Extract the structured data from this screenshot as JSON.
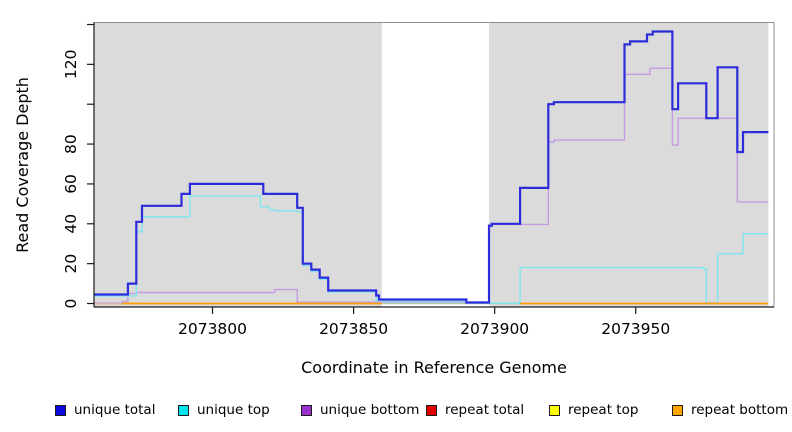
{
  "chart_data": {
    "type": "line",
    "subtype": "step-after-coverage",
    "title": "",
    "xlabel": "Coordinate in Reference Genome",
    "ylabel": "Read Coverage Depth",
    "xlim": [
      2073758,
      2073999
    ],
    "ylim": [
      0,
      140
    ],
    "grid": false,
    "legend_position": "bottom",
    "x_ticks": [
      {
        "value": 2073800,
        "label": "2073800"
      },
      {
        "value": 2073850,
        "label": "2073850"
      },
      {
        "value": 2073900,
        "label": "2073900"
      },
      {
        "value": 2073950,
        "label": "2073950"
      }
    ],
    "y_ticks": [
      {
        "value": 0,
        "label": "0"
      },
      {
        "value": 20,
        "label": "20"
      },
      {
        "value": 40,
        "label": "40"
      },
      {
        "value": 60,
        "label": "60"
      },
      {
        "value": 80,
        "label": "80"
      },
      {
        "value": 100,
        "label": ""
      },
      {
        "value": 120,
        "label": "120"
      },
      {
        "value": 140,
        "label": ""
      }
    ],
    "background_regions": [
      {
        "name": "covered-region-left",
        "from": 2073758,
        "to": 2073860,
        "color": "#dbdbdb"
      },
      {
        "name": "covered-region-right",
        "from": 2073898,
        "to": 2073997,
        "color": "#dbdbdb"
      }
    ],
    "series": [
      {
        "name": "gap-baseline",
        "color": "#a6d3a6",
        "width": 1.5,
        "in_legend": false,
        "segments": [
          [
            [
              2073860,
              0
            ],
            [
              2073909,
              0
            ]
          ]
        ]
      },
      {
        "name": "repeat total",
        "color": "#dd0000",
        "width": 1.3,
        "in_legend": true,
        "segments": [
          [
            [
              2073758,
              0
            ],
            [
              2073768,
              0
            ]
          ]
        ]
      },
      {
        "name": "repeat top",
        "color": "#ffff00",
        "width": 1.3,
        "in_legend": true,
        "segments": [
          [
            [
              2073758,
              0
            ],
            [
              2073768,
              0
            ]
          ]
        ]
      },
      {
        "name": "unique bottom",
        "color": "#c59ce4",
        "width": 1.4,
        "in_legend": true,
        "segments": [
          [
            [
              2073758,
              0.2
            ],
            [
              2073768,
              1
            ],
            [
              2073770,
              5
            ],
            [
              2073773,
              5.5
            ],
            [
              2073822,
              7
            ],
            [
              2073830,
              0.7
            ],
            [
              2073898,
              39.7
            ],
            [
              2073919,
              81
            ],
            [
              2073921,
              82
            ],
            [
              2073946,
              115
            ],
            [
              2073955,
              118
            ],
            [
              2073963,
              79.5
            ],
            [
              2073965,
              93
            ],
            [
              2073986,
              51
            ],
            [
              2073997,
              51
            ]
          ]
        ]
      },
      {
        "name": "unique top",
        "color": "#7fe6ef",
        "width": 1.4,
        "in_legend": true,
        "segments": [
          [
            [
              2073758,
              3.8
            ],
            [
              2073773,
              36
            ],
            [
              2073775,
              43.5
            ],
            [
              2073792,
              54
            ],
            [
              2073817,
              48.5
            ],
            [
              2073820,
              47
            ],
            [
              2073822,
              46.5
            ],
            [
              2073830,
              46
            ],
            [
              2073832,
              19
            ],
            [
              2073835,
              16
            ],
            [
              2073838,
              12.2
            ],
            [
              2073841,
              5.8
            ],
            [
              2073858,
              1.3
            ],
            [
              2073890,
              0.2
            ],
            [
              2073909,
              18
            ],
            [
              2073974,
              17.3
            ],
            [
              2073975,
              0.2
            ],
            [
              2073979,
              25
            ],
            [
              2073988,
              35
            ],
            [
              2073997,
              35
            ]
          ]
        ]
      },
      {
        "name": "unique total",
        "color": "#2c2cdb",
        "width": 2.2,
        "in_legend": true,
        "segments": [
          [
            [
              2073758,
              4.5
            ],
            [
              2073770,
              10
            ],
            [
              2073773,
              41
            ],
            [
              2073775,
              49
            ],
            [
              2073789,
              55
            ],
            [
              2073792,
              60
            ],
            [
              2073818,
              55
            ],
            [
              2073830,
              48
            ],
            [
              2073832,
              20
            ],
            [
              2073835,
              17
            ],
            [
              2073838,
              13
            ],
            [
              2073841,
              6.5
            ],
            [
              2073858,
              4
            ],
            [
              2073859,
              2
            ],
            [
              2073890,
              0.5
            ],
            [
              2073898,
              39
            ],
            [
              2073899,
              40
            ],
            [
              2073909,
              58
            ],
            [
              2073919,
              100
            ],
            [
              2073921,
              101
            ],
            [
              2073946,
              130
            ],
            [
              2073948,
              131.5
            ],
            [
              2073954,
              135
            ],
            [
              2073956,
              136.5
            ],
            [
              2073963,
              97.5
            ],
            [
              2073965,
              110.5
            ],
            [
              2073975,
              93
            ],
            [
              2073979,
              118.5
            ],
            [
              2073986,
              76
            ],
            [
              2073988,
              86
            ],
            [
              2073997,
              86
            ]
          ]
        ]
      },
      {
        "name": "repeat bottom",
        "color": "#ff9d00",
        "width": 1.7,
        "in_legend": true,
        "segments": [
          [
            [
              2073768,
              0
            ],
            [
              2073860,
              0
            ]
          ],
          [
            [
              2073909,
              0
            ],
            [
              2073997,
              0
            ]
          ]
        ]
      }
    ]
  },
  "legend": {
    "items": [
      {
        "label": "unique total",
        "color": "#0b0be0"
      },
      {
        "label": "unique top",
        "color": "#00e5ee"
      },
      {
        "label": "unique bottom",
        "color": "#9a32cd"
      },
      {
        "label": "repeat total",
        "color": "#e00000"
      },
      {
        "label": "repeat top",
        "color": "#ffff00"
      },
      {
        "label": "repeat bottom",
        "color": "#ffa500"
      }
    ]
  }
}
